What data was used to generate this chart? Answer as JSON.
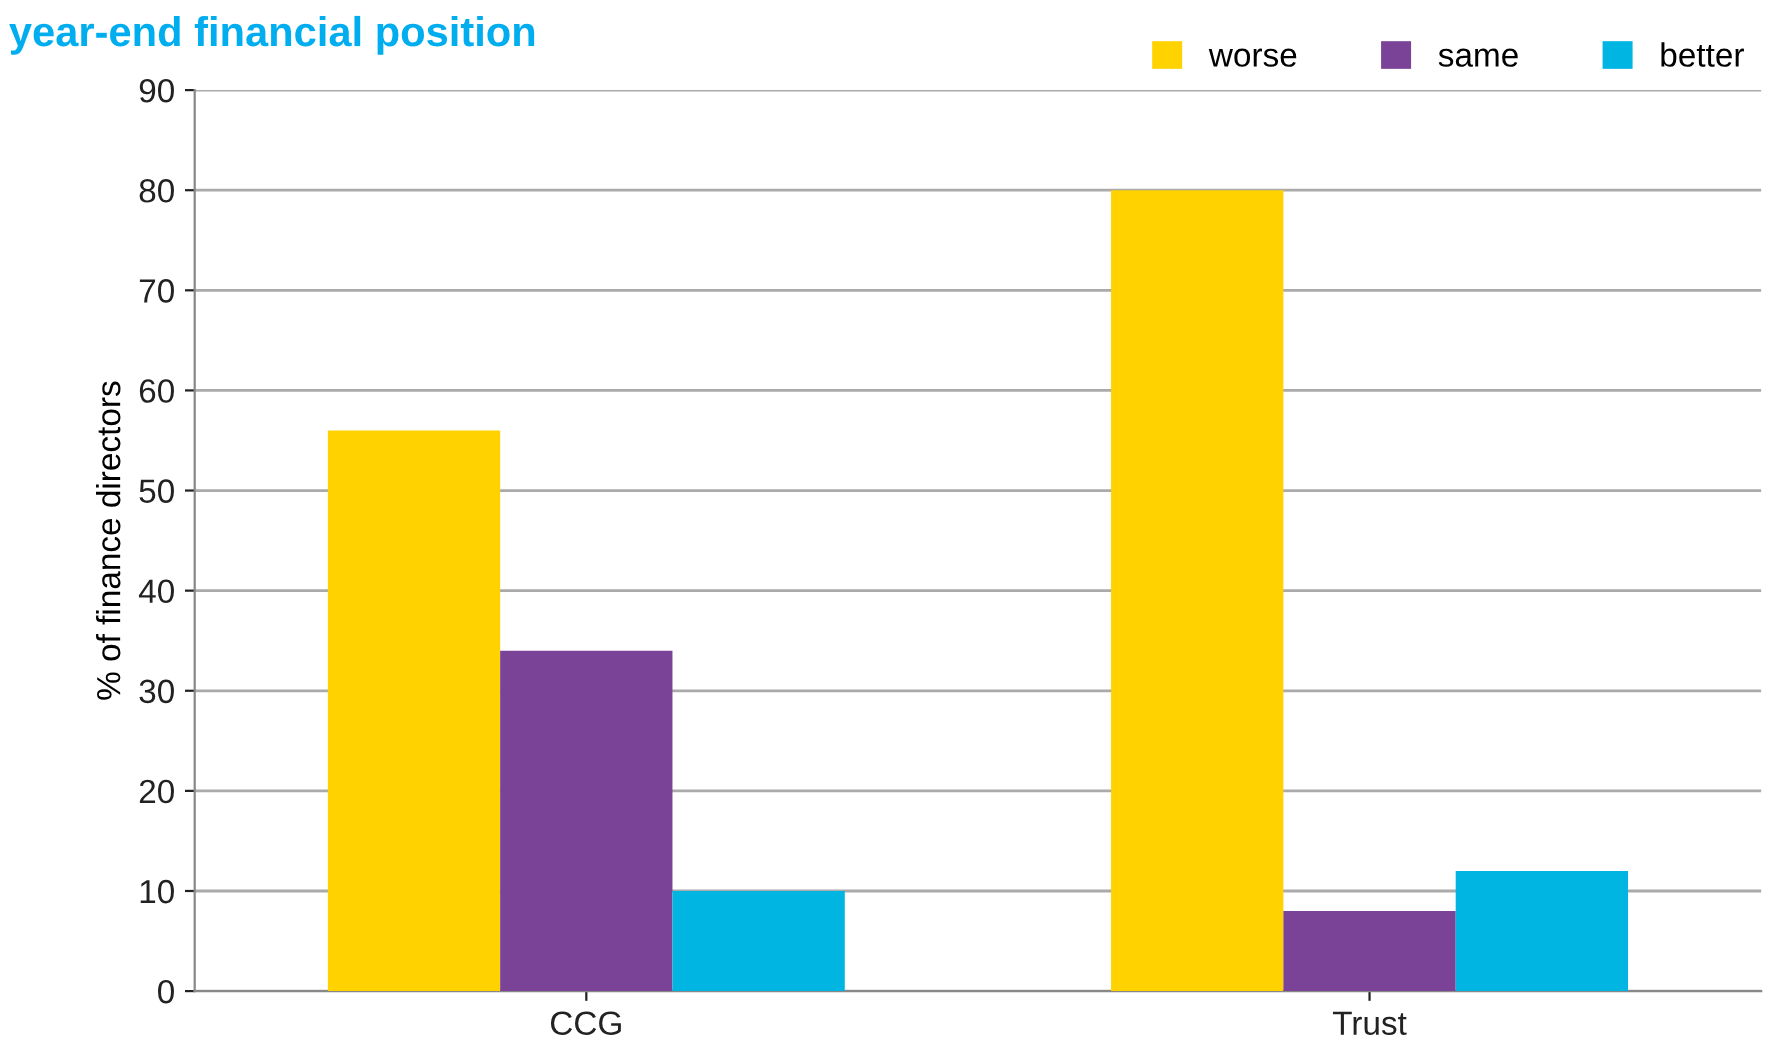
{
  "chart_data": {
    "type": "bar",
    "title": "year-end financial position",
    "ylabel": "% of finance directors",
    "categories": [
      "CCG",
      "Trust"
    ],
    "series": [
      {
        "name": "worse",
        "color": "#ffd200",
        "values": [
          56,
          80
        ]
      },
      {
        "name": "same",
        "color": "#7b4397",
        "values": [
          34,
          8
        ]
      },
      {
        "name": "better",
        "color": "#00b5e2",
        "values": [
          10,
          12
        ]
      }
    ],
    "ylim": [
      0,
      90
    ],
    "yticks": [
      0,
      10,
      20,
      30,
      40,
      50,
      60,
      70,
      80,
      90
    ],
    "grid": "y",
    "legend": "top right"
  }
}
